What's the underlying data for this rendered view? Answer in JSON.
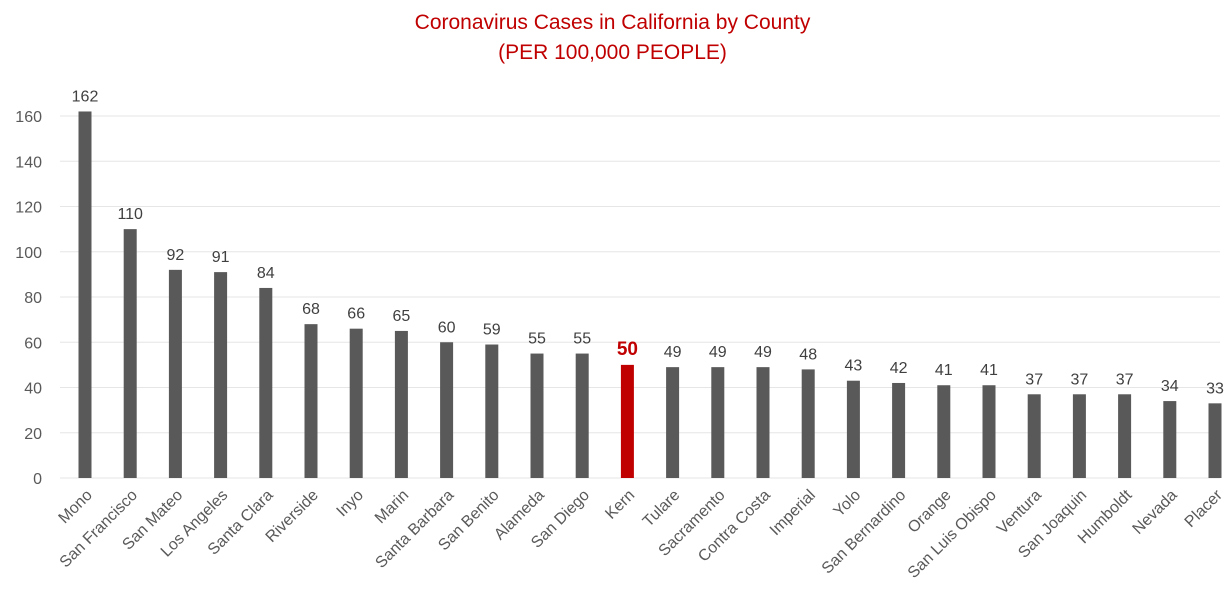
{
  "chart_data": {
    "type": "bar",
    "title": "Coronavirus Cases in California by County",
    "subtitle": "(PER 100,000 PEOPLE)",
    "xlabel": "",
    "ylabel": "",
    "ylim": [
      0,
      160
    ],
    "yticks": [
      0,
      20,
      40,
      60,
      80,
      100,
      120,
      140,
      160
    ],
    "grid": true,
    "categories": [
      "Mono",
      "San Francisco",
      "San Mateo",
      "Los Angeles",
      "Santa Clara",
      "Riverside",
      "Inyo",
      "Marin",
      "Santa Barbara",
      "San Benito",
      "Alameda",
      "San Diego",
      "Kern",
      "Tulare",
      "Sacramento",
      "Contra Costa",
      "Imperial",
      "Yolo",
      "San Bernardino",
      "Orange",
      "San Luis Obispo",
      "Ventura",
      "San Joaquin",
      "Humboldt",
      "Nevada",
      "Placer"
    ],
    "values": [
      162,
      110,
      92,
      91,
      84,
      68,
      66,
      65,
      60,
      59,
      55,
      55,
      50,
      49,
      49,
      49,
      48,
      43,
      42,
      41,
      41,
      37,
      37,
      37,
      34,
      33
    ],
    "highlight": "Kern",
    "colors": {
      "bar": "#595959",
      "highlight": "#c00000",
      "title": "#c00000"
    }
  }
}
